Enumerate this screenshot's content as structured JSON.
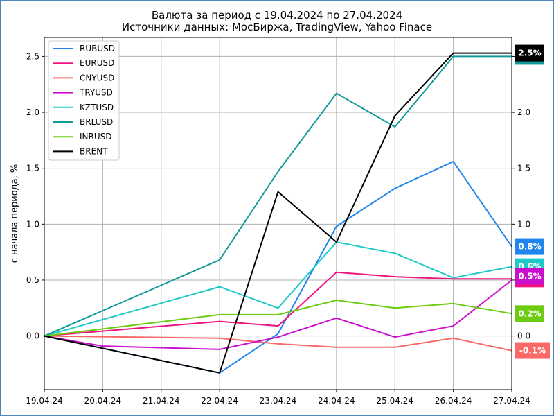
{
  "chart_data": {
    "type": "line",
    "title": "Валюта за период с 19.04.2024 по 27.04.2024",
    "subtitle": "Источники данных: МосБиржа, TradingView, Yahoo Finace",
    "ylabel": "с начала периода, %",
    "ylim": [
      -0.48,
      2.67
    ],
    "grid": true,
    "legend_position": "top-left",
    "categories": [
      "19.04.24",
      "20.04.24",
      "21.04.24",
      "22.04.24",
      "23.04.24",
      "24.04.24",
      "25.04.24",
      "26.04.24",
      "27.04.24"
    ],
    "y_ticks": [
      {
        "value": 0,
        "label": "0.0"
      },
      {
        "value": 0.5,
        "label": "0.5"
      },
      {
        "value": 1,
        "label": "1.0"
      },
      {
        "value": 1.5,
        "label": "1.5"
      },
      {
        "value": 2,
        "label": "2.0"
      },
      {
        "value": 2.5,
        "label": "2.5"
      }
    ],
    "series": [
      {
        "name": "RUBUSD",
        "color": "#1f86ee",
        "points": [
          [
            0,
            0
          ],
          [
            3,
            -0.33
          ],
          [
            4,
            0.02
          ],
          [
            5,
            0.98
          ],
          [
            6,
            1.32
          ],
          [
            7,
            1.56
          ],
          [
            8,
            0.8
          ]
        ],
        "last_label": "0.8%"
      },
      {
        "name": "EURUSD",
        "color": "#f0137f",
        "points": [
          [
            0,
            0
          ],
          [
            3,
            0.13
          ],
          [
            4,
            0.09
          ],
          [
            5,
            0.57
          ],
          [
            6,
            0.53
          ],
          [
            7,
            0.51
          ],
          [
            8,
            0.51
          ]
        ],
        "last_label": "0.5%"
      },
      {
        "name": "CNYUSD",
        "color": "#fa6868",
        "points": [
          [
            0,
            0
          ],
          [
            3,
            -0.02
          ],
          [
            4,
            -0.07
          ],
          [
            5,
            -0.1
          ],
          [
            6,
            -0.1
          ],
          [
            7,
            -0.02
          ],
          [
            8,
            -0.13
          ]
        ],
        "last_label": "-0.1%"
      },
      {
        "name": "TRYUSD",
        "color": "#c90fce",
        "points": [
          [
            0,
            0
          ],
          [
            1,
            -0.09
          ],
          [
            3,
            -0.12
          ],
          [
            4,
            -0.01
          ],
          [
            5,
            0.16
          ],
          [
            6,
            -0.01
          ],
          [
            7,
            0.09
          ],
          [
            8,
            0.5
          ]
        ],
        "last_label": "0.5%"
      },
      {
        "name": "KZTUSD",
        "color": "#1ec9c9",
        "points": [
          [
            0,
            0
          ],
          [
            3,
            0.44
          ],
          [
            4,
            0.25
          ],
          [
            5,
            0.84
          ],
          [
            6,
            0.74
          ],
          [
            7,
            0.52
          ],
          [
            8,
            0.62
          ]
        ],
        "last_label": "0.6%"
      },
      {
        "name": "BRLUSD",
        "color": "#129a9a",
        "points": [
          [
            0,
            0
          ],
          [
            3,
            0.68
          ],
          [
            4,
            1.47
          ],
          [
            5,
            2.17
          ],
          [
            6,
            1.87
          ],
          [
            7,
            2.5
          ],
          [
            8,
            2.5
          ]
        ],
        "last_label": "2.5%"
      },
      {
        "name": "INRUSD",
        "color": "#6dcc12",
        "points": [
          [
            0,
            0
          ],
          [
            3,
            0.19
          ],
          [
            4,
            0.19
          ],
          [
            5,
            0.32
          ],
          [
            6,
            0.25
          ],
          [
            7,
            0.29
          ],
          [
            8,
            0.2
          ]
        ],
        "last_label": "0.2%"
      },
      {
        "name": "BRENT",
        "color": "#000000",
        "points": [
          [
            0,
            0
          ],
          [
            3,
            -0.33
          ],
          [
            4,
            1.29
          ],
          [
            5,
            0.84
          ],
          [
            6,
            1.97
          ],
          [
            7,
            2.53
          ],
          [
            8,
            2.53
          ]
        ],
        "last_label": "2.5%"
      }
    ],
    "end_labels_order": [
      "BRLUSD",
      "BRENT",
      "RUBUSD",
      "KZTUSD",
      "EURUSD",
      "TRYUSD",
      "INRUSD",
      "CNYUSD"
    ]
  }
}
